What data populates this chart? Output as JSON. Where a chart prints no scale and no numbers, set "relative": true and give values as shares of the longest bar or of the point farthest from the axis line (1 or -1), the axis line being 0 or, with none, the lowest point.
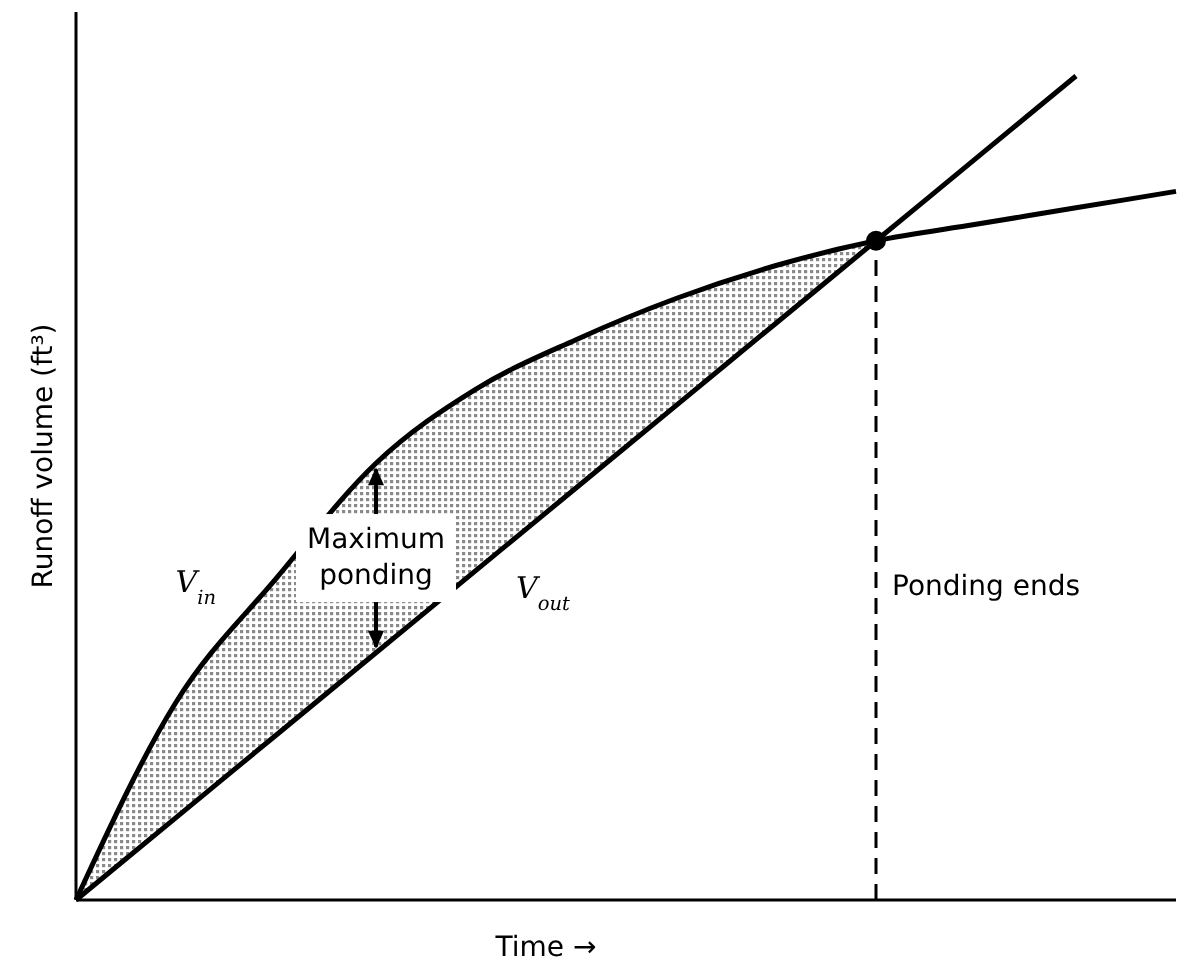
{
  "chart_data": {
    "type": "line",
    "relative": true,
    "xlabel": "Time →",
    "ylabel": "Runoff volume (ft³)",
    "categories": [
      null,
      null,
      null,
      null,
      null,
      null,
      null,
      null,
      null,
      null,
      null,
      null
    ],
    "marker": "none",
    "line_style": "solid",
    "series": [
      {
        "name": "V$_{in}$",
        "color": "#000000",
        "values": [
          0,
          0.24,
          0.39,
          0.53,
          0.62,
          0.68,
          0.73,
          0.77,
          0.8,
          0.82,
          0.84,
          0.86
        ]
      },
      {
        "name": "V$_{out}$",
        "color": "#000000",
        "values": [
          0,
          0.1,
          0.2,
          0.3,
          0.4,
          0.5,
          0.6,
          0.7,
          0.8,
          0.9,
          1.0,
          null
        ]
      }
    ],
    "ref_lines": [
      {
        "axis": "x",
        "label": "Ponding ends",
        "line_style": "dashed",
        "color": "#000000"
      }
    ],
    "annotations": [
      "Maximum ponding"
    ]
  }
}
